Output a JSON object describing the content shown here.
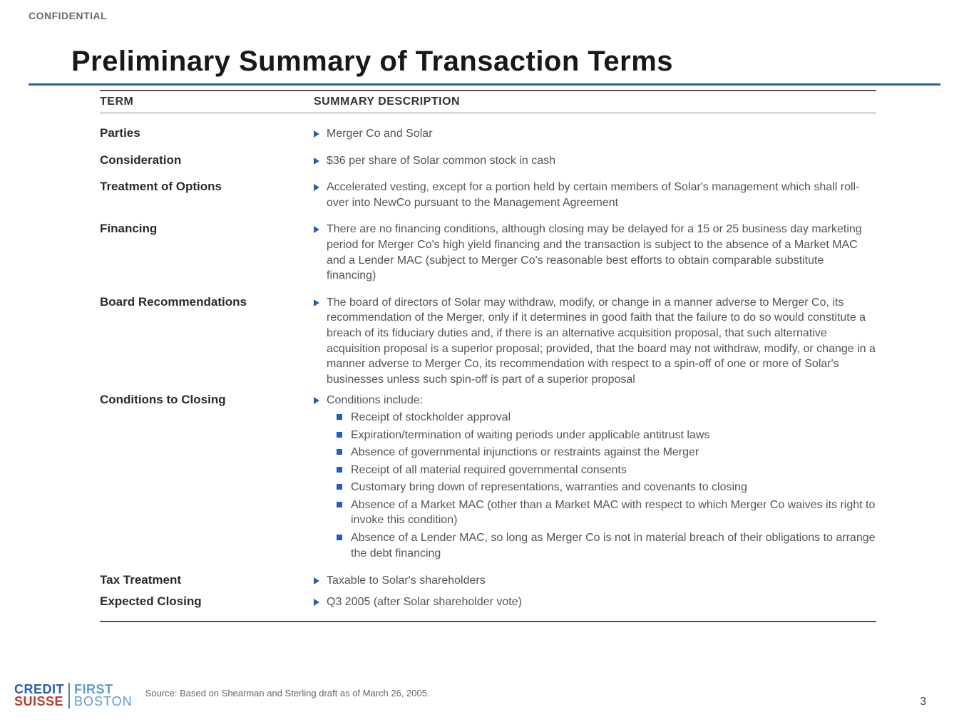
{
  "meta": {
    "confidential": "CONFIDENTIAL",
    "title": "Preliminary Summary of Transaction Terms",
    "page_number": "3",
    "source": "Source: Based on Shearman and Sterling draft as of March 26, 2005."
  },
  "colors": {
    "accent_blue": "#2a5db0",
    "text_body": "#555555",
    "text_heading": "#181818",
    "logo_red": "#c0392b",
    "logo_lightblue": "#5a9bd5"
  },
  "headers": {
    "term": "TERM",
    "desc": "SUMMARY DESCRIPTION"
  },
  "rows": {
    "parties": {
      "term": "Parties",
      "desc": "Merger Co and Solar"
    },
    "consideration": {
      "term": "Consideration",
      "desc": "$36 per share of Solar common stock in cash"
    },
    "options": {
      "term": "Treatment of Options",
      "desc": "Accelerated vesting, except for a portion held by certain members of Solar's management which shall roll-over into NewCo pursuant to the Management Agreement"
    },
    "financing": {
      "term": "Financing",
      "desc": "There are no financing conditions, although closing may be delayed for a 15 or 25 business day marketing period for Merger Co's high yield financing and the transaction is subject to the absence of a Market MAC and a Lender MAC (subject to Merger Co's reasonable best efforts to obtain comparable substitute financing)"
    },
    "board": {
      "term": "Board Recommendations",
      "desc": "The board of directors of Solar may withdraw, modify, or change in a manner adverse to Merger Co, its recommendation of the Merger, only if it determines in good faith that the failure to do so would constitute a breach of its fiduciary duties and, if there is an alternative acquisition proposal, that such alternative acquisition proposal is a superior proposal; provided, that the board may not withdraw, modify, or change in a manner adverse to Merger Co, its recommendation with respect to a spin-off of one or more of Solar's businesses unless such spin-off is part of a superior proposal"
    },
    "conditions": {
      "term": "Conditions to Closing",
      "lead": "Conditions include:",
      "items": {
        "i0": "Receipt of stockholder approval",
        "i1": "Expiration/termination of waiting periods under applicable antitrust laws",
        "i2": "Absence of governmental injunctions or restraints against the Merger",
        "i3": "Receipt of all material required governmental consents",
        "i4": "Customary bring down of representations, warranties and covenants to closing",
        "i5": "Absence of a Market MAC (other than a Market MAC with respect to which Merger Co waives its right to invoke this condition)",
        "i6": "Absence of a Lender MAC, so long as Merger Co is not in material breach of their obligations to arrange the debt financing"
      }
    },
    "tax": {
      "term": "Tax Treatment",
      "desc": "Taxable to Solar's shareholders"
    },
    "closing": {
      "term": "Expected Closing",
      "desc": "Q3 2005 (after Solar shareholder vote)"
    }
  },
  "logo": {
    "credit": "CREDIT",
    "suisse": "SUISSE",
    "first": "FIRST",
    "boston": "BOSTON"
  }
}
